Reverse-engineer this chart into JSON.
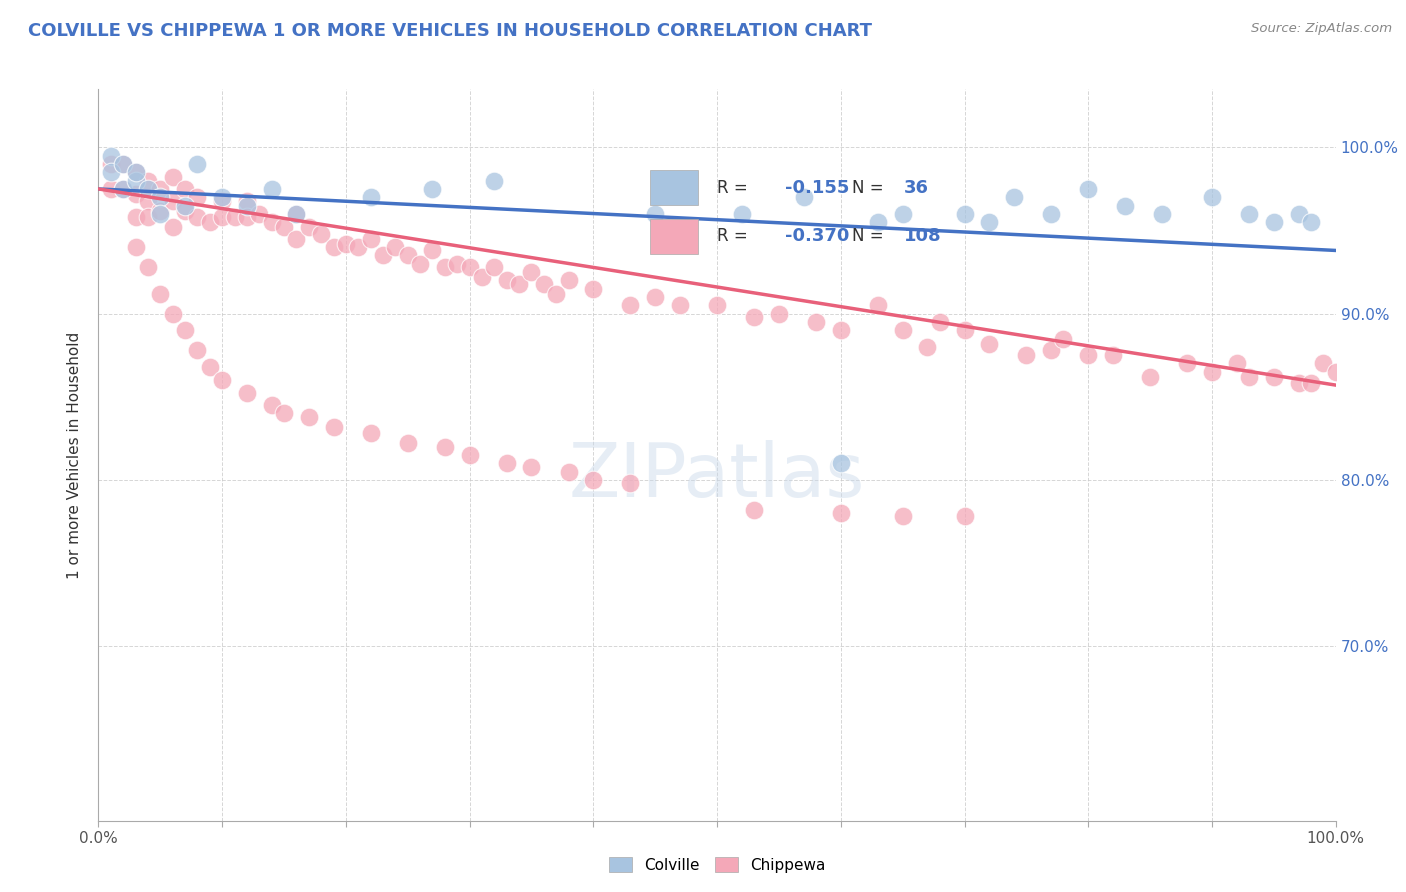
{
  "title": "COLVILLE VS CHIPPEWA 1 OR MORE VEHICLES IN HOUSEHOLD CORRELATION CHART",
  "ylabel": "1 or more Vehicles in Household",
  "source": "Source: ZipAtlas.com",
  "xlim": [
    0.0,
    1.0
  ],
  "ylim": [
    0.595,
    1.035
  ],
  "x_tick_positions": [
    0.0,
    0.1,
    0.2,
    0.3,
    0.4,
    0.5,
    0.6,
    0.7,
    0.8,
    0.9,
    1.0
  ],
  "x_tick_labels": [
    "0.0%",
    "",
    "",
    "",
    "",
    "",
    "",
    "",
    "",
    "",
    "100.0%"
  ],
  "y_tick_positions": [
    0.7,
    0.8,
    0.9,
    1.0
  ],
  "y_tick_labels": [
    "70.0%",
    "80.0%",
    "90.0%",
    "100.0%"
  ],
  "colville_R": -0.155,
  "colville_N": 36,
  "chippewa_R": -0.37,
  "chippewa_N": 108,
  "colville_color": "#a8c4e0",
  "chippewa_color": "#f4a8b8",
  "colville_line_color": "#4472c4",
  "chippewa_line_color": "#e8607a",
  "colville_x": [
    0.01,
    0.01,
    0.02,
    0.02,
    0.03,
    0.03,
    0.04,
    0.05,
    0.05,
    0.07,
    0.08,
    0.1,
    0.12,
    0.14,
    0.16,
    0.22,
    0.27,
    0.32,
    0.45,
    0.52,
    0.57,
    0.6,
    0.63,
    0.65,
    0.7,
    0.72,
    0.74,
    0.77,
    0.8,
    0.83,
    0.86,
    0.9,
    0.93,
    0.95,
    0.97,
    0.98
  ],
  "colville_y": [
    0.995,
    0.985,
    0.975,
    0.99,
    0.98,
    0.985,
    0.975,
    0.97,
    0.96,
    0.965,
    0.99,
    0.97,
    0.965,
    0.975,
    0.96,
    0.97,
    0.975,
    0.98,
    0.96,
    0.96,
    0.97,
    0.81,
    0.955,
    0.96,
    0.96,
    0.955,
    0.97,
    0.96,
    0.975,
    0.965,
    0.96,
    0.97,
    0.96,
    0.955,
    0.96,
    0.955
  ],
  "chippewa_x": [
    0.01,
    0.01,
    0.02,
    0.02,
    0.03,
    0.03,
    0.03,
    0.04,
    0.04,
    0.04,
    0.05,
    0.05,
    0.06,
    0.06,
    0.06,
    0.07,
    0.07,
    0.08,
    0.08,
    0.09,
    0.1,
    0.1,
    0.11,
    0.12,
    0.12,
    0.13,
    0.14,
    0.15,
    0.16,
    0.16,
    0.17,
    0.18,
    0.19,
    0.2,
    0.21,
    0.22,
    0.23,
    0.24,
    0.25,
    0.26,
    0.27,
    0.28,
    0.29,
    0.3,
    0.31,
    0.32,
    0.33,
    0.34,
    0.35,
    0.36,
    0.37,
    0.38,
    0.4,
    0.43,
    0.45,
    0.47,
    0.5,
    0.53,
    0.55,
    0.58,
    0.6,
    0.63,
    0.65,
    0.67,
    0.68,
    0.7,
    0.72,
    0.75,
    0.77,
    0.78,
    0.8,
    0.82,
    0.85,
    0.88,
    0.9,
    0.92,
    0.93,
    0.95,
    0.97,
    0.98,
    0.99,
    1.0,
    0.03,
    0.04,
    0.05,
    0.06,
    0.07,
    0.08,
    0.09,
    0.1,
    0.12,
    0.14,
    0.15,
    0.17,
    0.19,
    0.22,
    0.25,
    0.28,
    0.3,
    0.33,
    0.35,
    0.38,
    0.4,
    0.43,
    0.53,
    0.6,
    0.65,
    0.7
  ],
  "chippewa_y": [
    0.99,
    0.975,
    0.99,
    0.975,
    0.985,
    0.972,
    0.958,
    0.98,
    0.968,
    0.958,
    0.975,
    0.962,
    0.982,
    0.968,
    0.952,
    0.975,
    0.962,
    0.97,
    0.958,
    0.955,
    0.968,
    0.958,
    0.958,
    0.968,
    0.958,
    0.96,
    0.955,
    0.952,
    0.96,
    0.945,
    0.952,
    0.948,
    0.94,
    0.942,
    0.94,
    0.945,
    0.935,
    0.94,
    0.935,
    0.93,
    0.938,
    0.928,
    0.93,
    0.928,
    0.922,
    0.928,
    0.92,
    0.918,
    0.925,
    0.918,
    0.912,
    0.92,
    0.915,
    0.905,
    0.91,
    0.905,
    0.905,
    0.898,
    0.9,
    0.895,
    0.89,
    0.905,
    0.89,
    0.88,
    0.895,
    0.89,
    0.882,
    0.875,
    0.878,
    0.885,
    0.875,
    0.875,
    0.862,
    0.87,
    0.865,
    0.87,
    0.862,
    0.862,
    0.858,
    0.858,
    0.87,
    0.865,
    0.94,
    0.928,
    0.912,
    0.9,
    0.89,
    0.878,
    0.868,
    0.86,
    0.852,
    0.845,
    0.84,
    0.838,
    0.832,
    0.828,
    0.822,
    0.82,
    0.815,
    0.81,
    0.808,
    0.805,
    0.8,
    0.798,
    0.782,
    0.78,
    0.778,
    0.778
  ]
}
